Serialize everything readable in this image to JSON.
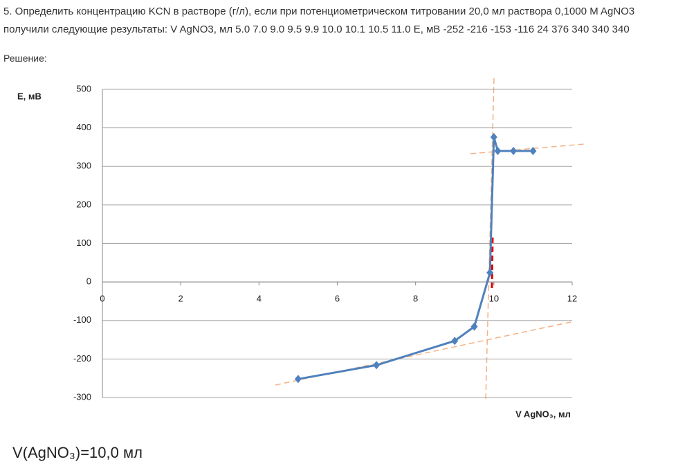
{
  "problem": {
    "line1": "5. Определить концентрацию KCN в растворе (г/л), если при потенциометрическом титровании 20,0 мл раствора 0,1000 M AgNO3",
    "line2": "получили следующие результаты: V AgNO3, мл 5.0 7.0 9.0 9.5 9.9 10.0 10.1 10.5 11.0 E, мВ -252 -216 -153 -116 24 376 340 340 340"
  },
  "solution_label": "Решение:",
  "chart_data": {
    "type": "line",
    "y_label": "E, мВ",
    "x_label": "V AgNO₃, мл",
    "x": [
      5,
      7,
      9,
      9.5,
      9.9,
      10.0,
      10.1,
      10.5,
      11.0
    ],
    "values": [
      -252,
      -216,
      -153,
      -116,
      24,
      376,
      340,
      340,
      340
    ],
    "color": "#4f81bd",
    "xlim": [
      0,
      12
    ],
    "xticks": [
      0,
      2,
      4,
      6,
      8,
      10,
      12
    ],
    "ylim": [
      -300,
      500
    ],
    "yticks": [
      -300,
      -200,
      -100,
      0,
      100,
      200,
      300,
      400,
      500
    ],
    "grid": true
  },
  "answer": "V(AgNO₃)=10,0 мл"
}
